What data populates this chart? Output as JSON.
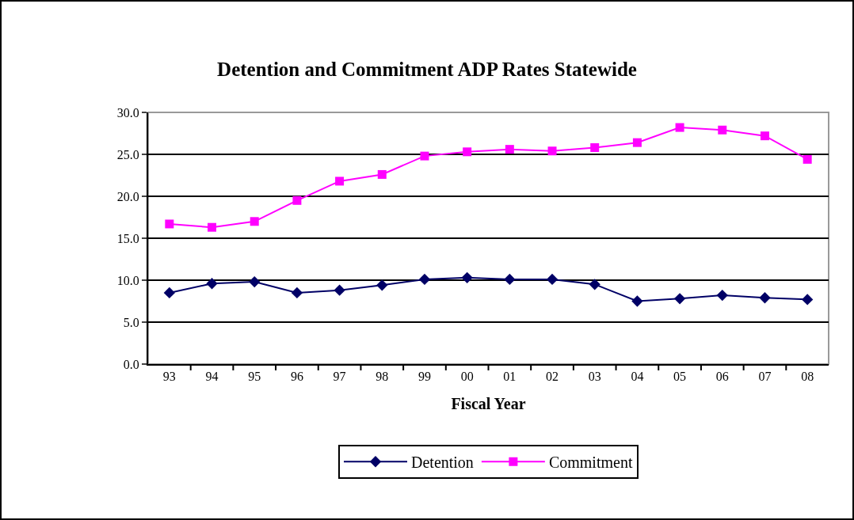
{
  "chart_data": {
    "type": "line",
    "title": "Detention and Commitment ADP Rates Statewide",
    "xlabel": "Fiscal Year",
    "categories": [
      "93",
      "94",
      "95",
      "96",
      "97",
      "98",
      "99",
      "00",
      "01",
      "02",
      "03",
      "04",
      "05",
      "06",
      "07",
      "08"
    ],
    "series": [
      {
        "name": "Detention",
        "color": "#000066",
        "marker": "diamond",
        "values": [
          8.5,
          9.6,
          9.8,
          8.5,
          8.8,
          9.4,
          10.1,
          10.3,
          10.1,
          10.1,
          9.5,
          7.5,
          7.8,
          8.2,
          7.9,
          7.7
        ]
      },
      {
        "name": "Commitment",
        "color": "#ff00ff",
        "marker": "square",
        "values": [
          16.7,
          16.3,
          17.0,
          19.5,
          21.8,
          22.6,
          24.8,
          25.3,
          25.6,
          25.4,
          25.8,
          26.4,
          28.2,
          27.9,
          27.2,
          24.4
        ]
      }
    ],
    "ylim": [
      0,
      30
    ],
    "yticks": [
      {
        "value": 0,
        "label": "0.0"
      },
      {
        "value": 5,
        "label": "5.0"
      },
      {
        "value": 10,
        "label": "10.0"
      },
      {
        "value": 15,
        "label": "15.0"
      },
      {
        "value": 20,
        "label": "20.0"
      },
      {
        "value": 25,
        "label": "25.0"
      },
      {
        "value": 30,
        "label": "30.0"
      }
    ],
    "grid": "y",
    "legend": "bottom"
  }
}
